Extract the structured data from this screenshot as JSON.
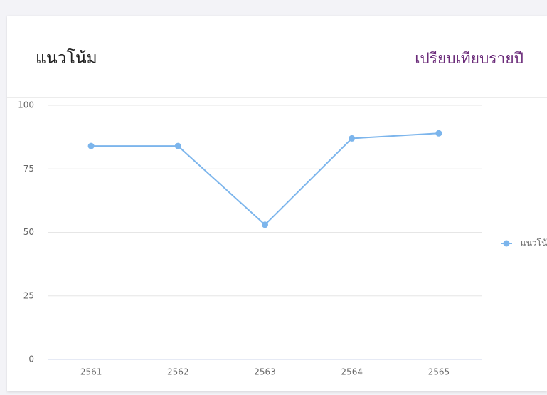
{
  "header": {
    "title": "แนวโน้ม",
    "link": "เปรียบเทียบรายปี"
  },
  "chart_data": {
    "type": "line",
    "categories": [
      "2561",
      "2562",
      "2563",
      "2564",
      "2565"
    ],
    "series": [
      {
        "name": "แนวโน้ม",
        "color": "#7cb5ec",
        "values": [
          84,
          84,
          53,
          87,
          89
        ]
      }
    ],
    "ylim": [
      0,
      100
    ],
    "yticks": [
      0,
      25,
      50,
      75,
      100
    ],
    "grid": true,
    "legend": "right"
  }
}
